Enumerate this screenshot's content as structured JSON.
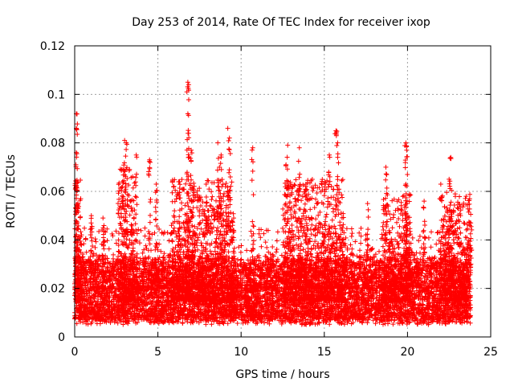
{
  "chart_data": {
    "type": "scatter",
    "title": "Day 253 of 2014, Rate Of TEC Index for receiver ixop",
    "xlabel": "GPS time / hours",
    "ylabel": "ROTI / TECUs",
    "xlim": [
      0,
      25
    ],
    "ylim": [
      0,
      0.12
    ],
    "x_ticks": [
      0,
      5,
      10,
      15,
      20,
      25
    ],
    "y_ticks": [
      0,
      0.02,
      0.04,
      0.06,
      0.08,
      0.1,
      0.12
    ],
    "x_tick_labels": [
      "0",
      "5",
      "10",
      "15",
      "20",
      "25"
    ],
    "y_tick_labels": [
      "0",
      "0.02",
      "0.04",
      "0.06",
      "0.08",
      "0.1",
      "0.12"
    ],
    "grid": true,
    "marker": "+",
    "color": "#ff0000",
    "data_range_x": [
      0,
      23.8
    ],
    "baseline_band": [
      0.005,
      0.03
    ],
    "series": [
      {
        "name": "ROTI",
        "notable_points": [
          {
            "x": 0.1,
            "y": 0.092
          },
          {
            "x": 0.1,
            "y": 0.086
          },
          {
            "x": 0.1,
            "y": 0.062
          },
          {
            "x": 0.2,
            "y": 0.055
          },
          {
            "x": 1.0,
            "y": 0.05
          },
          {
            "x": 1.7,
            "y": 0.049
          },
          {
            "x": 3.0,
            "y": 0.081
          },
          {
            "x": 3.1,
            "y": 0.08
          },
          {
            "x": 2.9,
            "y": 0.069
          },
          {
            "x": 3.7,
            "y": 0.075
          },
          {
            "x": 4.5,
            "y": 0.073
          },
          {
            "x": 4.9,
            "y": 0.063
          },
          {
            "x": 6.3,
            "y": 0.064
          },
          {
            "x": 6.8,
            "y": 0.105
          },
          {
            "x": 6.85,
            "y": 0.104
          },
          {
            "x": 6.8,
            "y": 0.092
          },
          {
            "x": 7.0,
            "y": 0.077
          },
          {
            "x": 7.1,
            "y": 0.061
          },
          {
            "x": 7.9,
            "y": 0.063
          },
          {
            "x": 8.6,
            "y": 0.08
          },
          {
            "x": 8.7,
            "y": 0.07
          },
          {
            "x": 8.8,
            "y": 0.075
          },
          {
            "x": 9.2,
            "y": 0.086
          },
          {
            "x": 9.3,
            "y": 0.082
          },
          {
            "x": 10.7,
            "y": 0.078
          },
          {
            "x": 12.8,
            "y": 0.079
          },
          {
            "x": 12.7,
            "y": 0.071
          },
          {
            "x": 13.5,
            "y": 0.078
          },
          {
            "x": 13.9,
            "y": 0.063
          },
          {
            "x": 15.7,
            "y": 0.085
          },
          {
            "x": 15.8,
            "y": 0.08
          },
          {
            "x": 15.3,
            "y": 0.075
          },
          {
            "x": 17.6,
            "y": 0.055
          },
          {
            "x": 18.7,
            "y": 0.07
          },
          {
            "x": 19.9,
            "y": 0.08
          },
          {
            "x": 19.95,
            "y": 0.077
          },
          {
            "x": 19.9,
            "y": 0.063
          },
          {
            "x": 21.0,
            "y": 0.056
          },
          {
            "x": 22.0,
            "y": 0.063
          },
          {
            "x": 22.6,
            "y": 0.074
          },
          {
            "x": 22.5,
            "y": 0.065
          },
          {
            "x": 23.8,
            "y": 0.047
          }
        ],
        "burst_ranges": [
          {
            "x_from": 0.0,
            "x_to": 0.4,
            "y_max": 0.065
          },
          {
            "x_from": 2.6,
            "x_to": 3.6,
            "y_max": 0.07
          },
          {
            "x_from": 5.8,
            "x_to": 9.6,
            "y_max": 0.065
          },
          {
            "x_from": 12.5,
            "x_to": 16.2,
            "y_max": 0.065
          },
          {
            "x_from": 18.5,
            "x_to": 20.2,
            "y_max": 0.06
          },
          {
            "x_from": 22.0,
            "x_to": 23.8,
            "y_max": 0.06
          }
        ]
      }
    ]
  }
}
